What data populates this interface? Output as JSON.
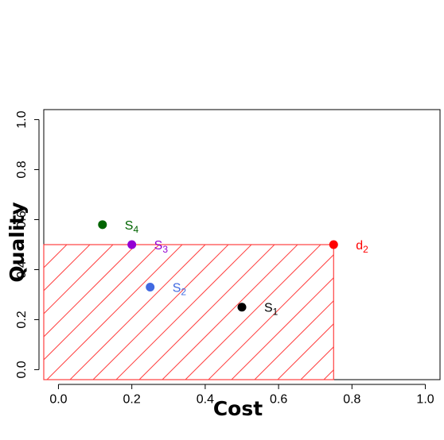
{
  "chart_data": {
    "type": "scatter",
    "xlabel": "Cost",
    "ylabel": "Quality",
    "xlim": [
      -0.04,
      1.04
    ],
    "ylim": [
      -0.04,
      1.04
    ],
    "x_ticks": [
      0.0,
      0.2,
      0.4,
      0.6,
      0.8,
      1.0
    ],
    "y_ticks": [
      0.0,
      0.2,
      0.4,
      0.6,
      0.8,
      1.0
    ],
    "x_tick_labels": [
      "0.0",
      "0.2",
      "0.4",
      "0.6",
      "0.8",
      "1.0"
    ],
    "y_tick_labels": [
      "0.0",
      "0.2",
      "0.4",
      "0.6",
      "0.8",
      "1.0"
    ],
    "grid": false,
    "points": [
      {
        "label": "S",
        "sub": "1",
        "x": 0.5,
        "y": 0.25,
        "color": "#000000"
      },
      {
        "label": "S",
        "sub": "2",
        "x": 0.25,
        "y": 0.33,
        "color": "#4169E1"
      },
      {
        "label": "S",
        "sub": "3",
        "x": 0.2,
        "y": 0.5,
        "color": "#9400D3"
      },
      {
        "label": "S",
        "sub": "4",
        "x": 0.12,
        "y": 0.58,
        "color": "#006400"
      },
      {
        "label": "d",
        "sub": "2",
        "x": 0.75,
        "y": 0.5,
        "color": "#FF0000"
      }
    ],
    "region": {
      "x": [
        -0.04,
        0.75
      ],
      "y": [
        -0.04,
        0.5
      ],
      "fill": "hatched",
      "color": "#FF4040"
    }
  }
}
